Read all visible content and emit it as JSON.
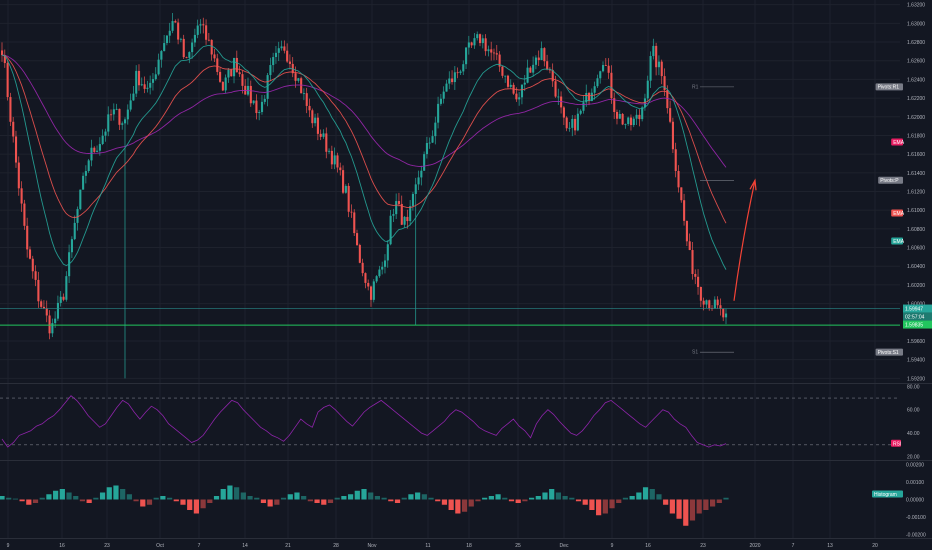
{
  "app": {
    "background_color": "#131722",
    "up_color": "#26a69a",
    "down_color": "#ef5350"
  },
  "chart_data": [
    {
      "type": "candlestick",
      "title": "",
      "price_axis": {
        "ticks": [
          "1.63200",
          "1.63000",
          "1.62800",
          "1.62600",
          "1.62400",
          "1.62200",
          "1.62000",
          "1.61800",
          "1.61600",
          "1.61400",
          "1.61200",
          "1.61000",
          "1.60800",
          "1.60600",
          "1.60400",
          "1.60200",
          "1.60000",
          "1.59600",
          "1.59400",
          "1.59200"
        ],
        "range": [
          1.5915,
          1.6325
        ]
      },
      "price_markers": [
        {
          "name": "Pivots:R1",
          "color": "#787b86",
          "value": 1.6232
        },
        {
          "name": "EMA",
          "color": "#e91e63",
          "value": 1.6173
        },
        {
          "name": "Pivots:P",
          "color": "#787b86",
          "value": 1.6132
        },
        {
          "name": "EMA",
          "color": "#ef5350",
          "value": 1.6097
        },
        {
          "name": "EMA",
          "color": "#26a69a",
          "value": 1.6067
        },
        {
          "name": "Pivots:S1",
          "color": "#787b86",
          "value": 1.5948
        }
      ],
      "current_price": {
        "value": "1.59947",
        "countdown": "02:57:04",
        "secondary": "1.59835"
      },
      "horizontal_lines": [
        {
          "value": 1.5977,
          "color": "#22c55e"
        },
        {
          "value": 1.59947,
          "color": "#2a8a8a"
        }
      ],
      "pivot_labels": [
        {
          "text": "R1",
          "value": 1.6232
        },
        {
          "text": "S1",
          "value": 1.5948
        }
      ],
      "annotation_arrow": {
        "color": "#f44336",
        "from_price": 1.6003,
        "to_price": 1.6132
      },
      "series": [
        {
          "name": "EMA",
          "color": "#9c27b0",
          "role": "slow"
        },
        {
          "name": "EMA",
          "color": "#26a69a",
          "role": "fast"
        },
        {
          "name": "EMA",
          "color": "#ef5350",
          "role": "mid"
        }
      ],
      "candles_note": "hourly candles, estimated path",
      "price_path": [
        1.6275,
        1.6165,
        1.606,
        1.6005,
        1.5972,
        1.601,
        1.609,
        1.6155,
        1.6175,
        1.6205,
        1.6195,
        1.6245,
        1.6225,
        1.6275,
        1.6305,
        1.6255,
        1.63,
        1.6275,
        1.623,
        1.626,
        1.6225,
        1.6205,
        1.6255,
        1.6275,
        1.6245,
        1.6205,
        1.618,
        1.6155,
        1.612,
        1.6055,
        1.601,
        1.604,
        1.611,
        1.608,
        1.614,
        1.618,
        1.623,
        1.6245,
        1.627,
        1.6285,
        1.6265,
        1.6245,
        1.6215,
        1.6255,
        1.627,
        1.6235,
        1.618,
        1.62,
        1.623,
        1.6265,
        1.6205,
        1.619,
        1.62,
        1.627,
        1.6235,
        1.614,
        1.605,
        1.601,
        1.5998,
        1.5983
      ]
    },
    {
      "type": "line",
      "name": "RSI",
      "color": "#8e24aa",
      "label": "RSI",
      "axis": {
        "ticks": [
          "80.00",
          "60.00",
          "40.00",
          "20.00"
        ],
        "range": [
          17,
          82
        ]
      },
      "band_lines": [
        70,
        30
      ],
      "values": [
        35,
        28,
        32,
        38,
        40,
        42,
        46,
        48,
        52,
        55,
        60,
        66,
        72,
        68,
        62,
        55,
        50,
        45,
        48,
        55,
        62,
        68,
        65,
        58,
        52,
        58,
        63,
        60,
        55,
        48,
        44,
        40,
        36,
        32,
        34,
        38,
        45,
        52,
        58,
        63,
        68,
        66,
        60,
        55,
        50,
        45,
        42,
        38,
        36,
        33,
        38,
        45,
        52,
        48,
        45,
        58,
        62,
        64,
        60,
        55,
        50,
        46,
        52,
        58,
        62,
        65,
        68,
        64,
        60,
        56,
        52,
        48,
        44,
        40,
        38,
        42,
        46,
        50,
        56,
        60,
        58,
        54,
        50,
        45,
        42,
        40,
        38,
        44,
        48,
        52,
        46,
        42,
        36,
        48,
        55,
        60,
        56,
        50,
        45,
        40,
        38,
        42,
        48,
        55,
        60,
        66,
        68,
        64,
        60,
        56,
        52,
        48,
        45,
        50,
        55,
        60,
        58,
        52,
        48,
        45,
        38,
        32,
        30,
        28,
        30,
        29,
        31
      ]
    },
    {
      "type": "bar",
      "name": "MACD Histogram",
      "label": "Histogram",
      "axis": {
        "ticks": [
          "0.00200",
          "0.00100",
          "0.00000",
          "-0.00100",
          "-0.00200"
        ],
        "range": [
          -0.0022,
          0.0022
        ]
      },
      "positive_color": "#26a69a",
      "negative_color": "#ef5350",
      "values": [
        0.0002,
        0.0001,
        5e-05,
        -0.0001,
        -0.0003,
        -0.0002,
        0.0001,
        0.0003,
        0.0005,
        0.0006,
        0.0004,
        0.0002,
        -0.0001,
        -0.0002,
        0.0001,
        0.0004,
        0.0007,
        0.0008,
        0.0006,
        0.0003,
        -0.0001,
        -0.0004,
        -0.0003,
        0.0001,
        0.0002,
        0.0001,
        -0.0001,
        -0.0003,
        -0.0006,
        -0.0008,
        -0.0005,
        -0.0002,
        0.0002,
        0.0006,
        0.0008,
        0.0007,
        0.0004,
        0.0002,
        0.0001,
        -0.0002,
        -0.0004,
        -0.0003,
        0.0001,
        0.0003,
        0.0004,
        0.0002,
        -0.0001,
        -0.0002,
        -0.0003,
        -0.0002,
        0.0001,
        0.0002,
        0.0003,
        0.0005,
        0.0006,
        0.0004,
        0.0002,
        0.0001,
        -0.0001,
        -0.0002,
        0.0001,
        0.0003,
        0.0004,
        0.0003,
        0.0001,
        -0.0001,
        -0.0003,
        -0.0006,
        -0.0008,
        -0.0007,
        -0.0004,
        -0.0001,
        0.0001,
        0.0002,
        0.0003,
        0.0001,
        -0.0001,
        -0.0002,
        -0.0001,
        0.0001,
        0.0002,
        0.0004,
        0.0006,
        0.0004,
        0.0002,
        0.0001,
        -0.0001,
        -0.0003,
        -0.0006,
        -0.0009,
        -0.0008,
        -0.0005,
        -0.0002,
        0.0001,
        0.0002,
        0.0004,
        0.0007,
        0.0006,
        0.0003,
        -0.0003,
        -0.0008,
        -0.0011,
        -0.0015,
        -0.0012,
        -0.0008,
        -0.0006,
        -0.0004,
        -0.0002,
        0.0001
      ]
    }
  ],
  "time_axis": {
    "labels": [
      "9",
      "16",
      "23",
      "Oct",
      "7",
      "14",
      "21",
      "28",
      "Nov",
      "11",
      "18",
      "25",
      "Dec",
      "9",
      "16",
      "23",
      "2020",
      "7",
      "13",
      "20"
    ]
  }
}
